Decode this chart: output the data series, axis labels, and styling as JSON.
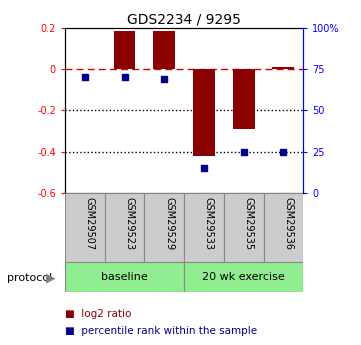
{
  "title": "GDS2234 / 9295",
  "samples": [
    "GSM29507",
    "GSM29523",
    "GSM29529",
    "GSM29533",
    "GSM29535",
    "GSM29536"
  ],
  "log2_ratios": [
    0.0,
    0.185,
    0.185,
    -0.42,
    -0.29,
    0.01
  ],
  "percentile_ranks": [
    70,
    70,
    69,
    15,
    25,
    25
  ],
  "ylim": [
    -0.6,
    0.2
  ],
  "yticks_left": [
    -0.6,
    -0.4,
    -0.2,
    0.0,
    0.2
  ],
  "ytick_labels_left": [
    "-0.6",
    "-0.4",
    "-0.2",
    "0",
    "0.2"
  ],
  "yticks_right_pct": [
    0,
    25,
    50,
    75,
    100
  ],
  "ytick_labels_right": [
    "0",
    "25",
    "50",
    "75",
    "100%"
  ],
  "bar_color": "#8B0000",
  "dot_color": "#00008B",
  "dashed_line_color": "#CC0000",
  "dotted_line_color": "#000000",
  "baseline_label": "baseline",
  "exercise_label": "20 wk exercise",
  "protocol_label": "protocol",
  "legend_bar_label": "log2 ratio",
  "legend_dot_label": "percentile rank within the sample",
  "baseline_color": "#90EE90",
  "exercise_color": "#90EE90",
  "bar_width": 0.55
}
